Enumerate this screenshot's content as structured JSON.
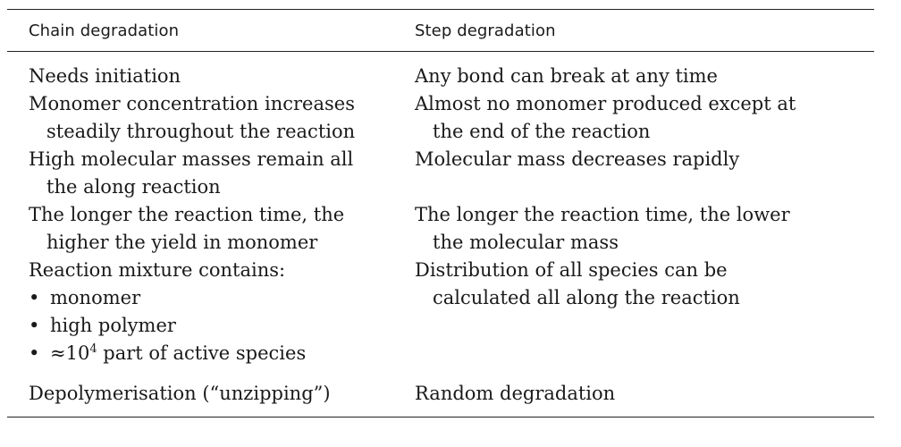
{
  "table": {
    "headers": {
      "left": "Chain degradation",
      "right": "Step degradation"
    },
    "rows": [
      {
        "left": [
          "Needs initiation"
        ],
        "right": [
          "Any bond can break at any time"
        ]
      },
      {
        "left": [
          "Monomer concentration increases",
          "steadily throughout the reaction"
        ],
        "right": [
          "Almost no monomer produced except at",
          "the end of the reaction"
        ]
      },
      {
        "left": [
          "High molecular masses remain all",
          "the along reaction"
        ],
        "right": [
          "Molecular mass decreases rapidly"
        ]
      },
      {
        "left": [
          "The longer the reaction time, the",
          "higher the yield in monomer"
        ],
        "right": [
          "The longer the reaction time, the lower",
          "the molecular mass"
        ]
      },
      {
        "left_heading": "Reaction mixture contains:",
        "left_bullets": [
          "monomer",
          "high polymer"
        ],
        "left_last_bullet": {
          "prefix": "≈10",
          "sup": "4",
          "suffix": " part of active species"
        },
        "bullet_symbol": "•",
        "right": [
          "Distribution of all species can be",
          "calculated all along the reaction"
        ]
      },
      {
        "left": [
          "Depolymerisation (“unzipping”)"
        ],
        "right": [
          "Random degradation"
        ]
      }
    ]
  }
}
